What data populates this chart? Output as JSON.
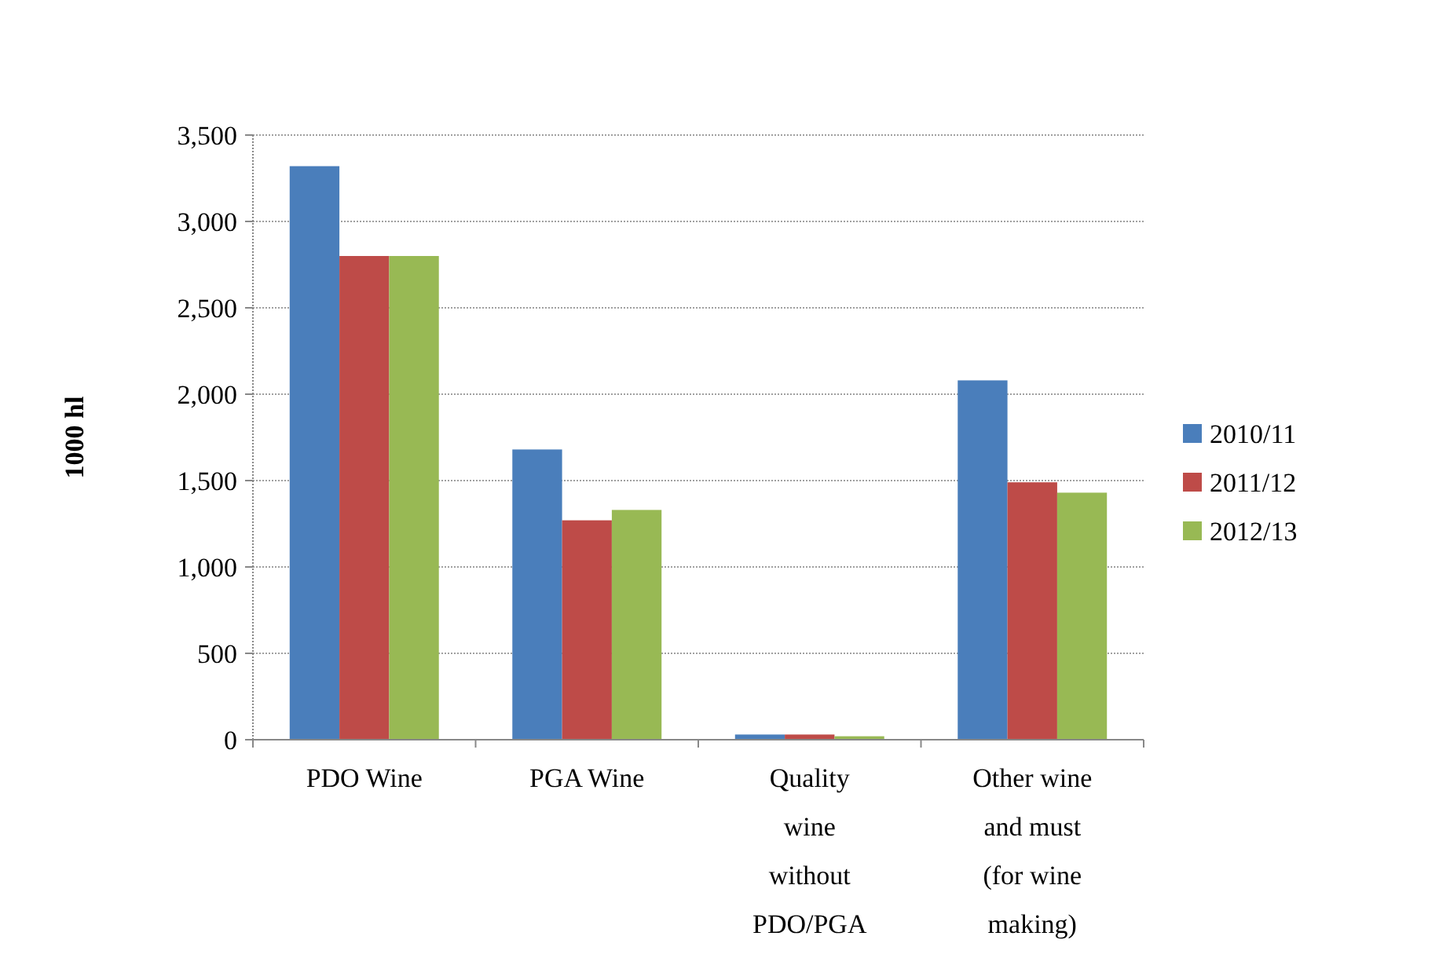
{
  "chart_data": {
    "type": "bar",
    "ylabel": "1000 hl",
    "categories": [
      "PDO Wine",
      "PGA Wine",
      "Quality wine without PDO/PGA",
      "Other wine and must (for wine making)"
    ],
    "series": [
      {
        "name": "2010/11",
        "color": "#4a7ebb",
        "values": [
          3320,
          1680,
          30,
          2080
        ]
      },
      {
        "name": "2011/12",
        "color": "#be4b48",
        "values": [
          2800,
          1270,
          30,
          1490
        ]
      },
      {
        "name": "2012/13",
        "color": "#98b954",
        "values": [
          2800,
          1330,
          20,
          1430
        ]
      }
    ],
    "ylim": [
      0,
      3500
    ],
    "yticks": [
      {
        "value": 0,
        "label": "0"
      },
      {
        "value": 500,
        "label": "500"
      },
      {
        "value": 1000,
        "label": "1,000"
      },
      {
        "value": 1500,
        "label": "1,500"
      },
      {
        "value": 2000,
        "label": "2,000"
      },
      {
        "value": 2500,
        "label": "2,500"
      },
      {
        "value": 3000,
        "label": "3,000"
      },
      {
        "value": 3500,
        "label": "3,500"
      }
    ],
    "grid": "y",
    "legend": "right"
  }
}
